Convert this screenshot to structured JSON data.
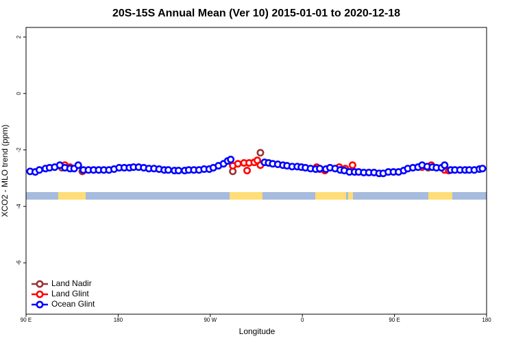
{
  "chart_data": {
    "type": "scatter",
    "title": "20S-15S Annual Mean (Ver 10)   2015-01-01 to 2020-12-18",
    "x_label": "Longitude",
    "y_label": "XCO2 - MLO trend (ppm)",
    "xlim": [
      90,
      540
    ],
    "ylim": [
      -7.82,
      2.34
    ],
    "xticks": [
      {
        "value": 90,
        "label": "90 E"
      },
      180,
      {
        "value": 270,
        "label": "90 W"
      },
      {
        "value": 360,
        "label": "0"
      },
      {
        "value": 450,
        "label": "90 E"
      },
      {
        "value": 540,
        "label": "180"
      }
    ],
    "yticks": [
      2,
      0,
      -2,
      -4,
      -6
    ],
    "grid": false,
    "legend": "bottom-left",
    "series": [
      {
        "name": "Land Nadir",
        "color": "#993333",
        "x": [
          125,
          145,
          292,
          319,
          483,
          499
        ],
        "values": [
          -2.63,
          -2.76,
          -2.76,
          -2.1,
          -2.63,
          -2.66
        ]
      },
      {
        "name": "Land Glint",
        "color": "#ff0000",
        "x": [
          128,
          133,
          146,
          292,
          297,
          303,
          306,
          308,
          313,
          316,
          319,
          374,
          377,
          382,
          396,
          402,
          409,
          477,
          486,
          499,
          503
        ],
        "values": [
          -2.54,
          -2.61,
          -2.73,
          -2.56,
          -2.49,
          -2.46,
          -2.73,
          -2.46,
          -2.44,
          -2.37,
          -2.54,
          -2.61,
          -2.68,
          -2.73,
          -2.61,
          -2.66,
          -2.54,
          -2.61,
          -2.54,
          -2.71,
          -2.73
        ]
      },
      {
        "name": "Ocean Glint",
        "color": "#0000ff",
        "x": [
          94,
          99,
          103,
          109,
          113,
          118,
          123,
          128,
          133,
          137,
          141,
          146,
          151,
          156,
          161,
          166,
          171,
          176,
          181,
          186,
          191,
          195,
          200,
          205,
          210,
          215,
          220,
          225,
          229,
          235,
          239,
          245,
          249,
          254,
          259,
          264,
          269,
          273,
          278,
          283,
          287,
          290,
          323,
          327,
          331,
          336,
          341,
          345,
          350,
          355,
          359,
          363,
          368,
          373,
          377,
          383,
          387,
          392,
          397,
          401,
          406,
          411,
          415,
          420,
          425,
          430,
          435,
          439,
          444,
          449,
          454,
          459,
          463,
          468,
          473,
          477,
          482,
          487,
          491,
          496,
          499,
          505,
          509,
          514,
          519,
          523,
          528,
          533,
          536
        ],
        "values": [
          -2.76,
          -2.78,
          -2.71,
          -2.66,
          -2.63,
          -2.61,
          -2.54,
          -2.63,
          -2.66,
          -2.66,
          -2.54,
          -2.71,
          -2.71,
          -2.71,
          -2.71,
          -2.71,
          -2.71,
          -2.68,
          -2.63,
          -2.63,
          -2.63,
          -2.61,
          -2.61,
          -2.63,
          -2.66,
          -2.66,
          -2.68,
          -2.71,
          -2.71,
          -2.73,
          -2.73,
          -2.73,
          -2.71,
          -2.71,
          -2.71,
          -2.68,
          -2.68,
          -2.63,
          -2.56,
          -2.49,
          -2.39,
          -2.34,
          -2.44,
          -2.46,
          -2.49,
          -2.51,
          -2.54,
          -2.56,
          -2.59,
          -2.59,
          -2.61,
          -2.63,
          -2.66,
          -2.68,
          -2.66,
          -2.68,
          -2.63,
          -2.66,
          -2.71,
          -2.73,
          -2.78,
          -2.78,
          -2.78,
          -2.8,
          -2.8,
          -2.8,
          -2.83,
          -2.83,
          -2.78,
          -2.78,
          -2.78,
          -2.73,
          -2.66,
          -2.63,
          -2.61,
          -2.54,
          -2.59,
          -2.61,
          -2.63,
          -2.63,
          -2.54,
          -2.71,
          -2.71,
          -2.71,
          -2.71,
          -2.71,
          -2.71,
          -2.68,
          -2.66
        ]
      }
    ]
  }
}
